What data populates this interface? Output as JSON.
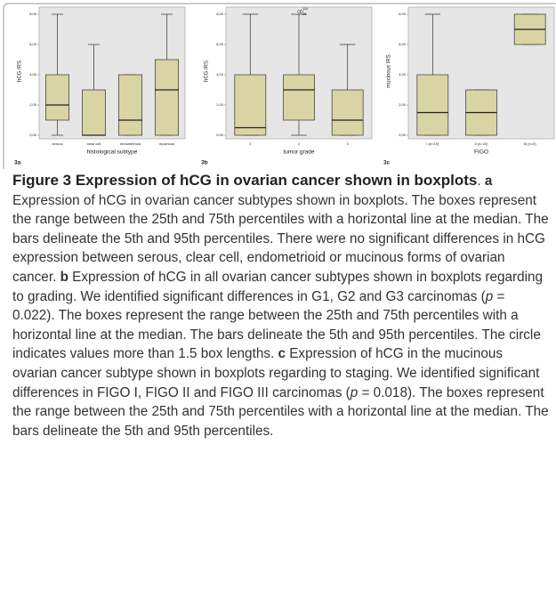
{
  "chart_data": [
    {
      "type": "box",
      "panel_label": "3a",
      "y_label": "hCG IRS",
      "x_label": "histological subtype",
      "categories": [
        "serous",
        "clear cell",
        "endometrioid",
        "mucinous"
      ],
      "boxes": [
        {
          "whislo": 0,
          "q1": 1,
          "med": 2,
          "q3": 4,
          "whishi": 8
        },
        {
          "whislo": 0,
          "q1": 0,
          "med": 0,
          "q3": 3,
          "whishi": 6
        },
        {
          "whislo": 0,
          "q1": 0,
          "med": 1,
          "q3": 4,
          "whishi": 4
        },
        {
          "whislo": 0,
          "q1": 0,
          "med": 3,
          "q3": 5,
          "whishi": 8
        }
      ],
      "color": "#d9d4a3",
      "ylim": [
        0,
        8
      ],
      "yticks": [
        {
          "value": 0,
          "label": "0,00"
        },
        {
          "value": 2,
          "label": "2,00"
        },
        {
          "value": 4,
          "label": "4,00"
        },
        {
          "value": 6,
          "label": "6,00"
        },
        {
          "value": 8,
          "label": "8,00"
        }
      ]
    },
    {
      "type": "box",
      "panel_label": "3b",
      "y_label": "hCG IRS",
      "x_label": "tumor grade",
      "categories": [
        "1",
        "2",
        "3"
      ],
      "boxes": [
        {
          "whislo": 0,
          "q1": 0,
          "med": 0.5,
          "q3": 4,
          "whishi": 8
        },
        {
          "whislo": 0,
          "q1": 1,
          "med": 3,
          "q3": 4,
          "whishi": 8,
          "outliers": [
            8,
            8
          ],
          "outlier_labels": [
            "110",
            "16"
          ]
        },
        {
          "whislo": 0,
          "q1": 0,
          "med": 1,
          "q3": 3,
          "whishi": 6
        }
      ],
      "color": "#d9d4a3",
      "ylim": [
        0,
        8
      ],
      "yticks": [
        {
          "value": 0,
          "label": "0,00"
        },
        {
          "value": 2,
          "label": "2,00"
        },
        {
          "value": 4,
          "label": "4,00"
        },
        {
          "value": 6,
          "label": "6,00"
        },
        {
          "value": 8,
          "label": "8,00"
        }
      ]
    },
    {
      "type": "box",
      "panel_label": "3c",
      "y_label": "mucinous IRS",
      "x_label": "FIGO",
      "categories": [
        "I (n=19)",
        "II (n=10)",
        "III (n=3)"
      ],
      "boxes": [
        {
          "whislo": 0,
          "q1": 0,
          "med": 1.5,
          "q3": 4,
          "whishi": 8
        },
        {
          "whislo": 0,
          "q1": 0,
          "med": 1.5,
          "q3": 3,
          "whishi": 3
        },
        {
          "whislo": 6,
          "q1": 6,
          "med": 7,
          "q3": 8,
          "whishi": 8
        }
      ],
      "color": "#d9d4a3",
      "ylim": [
        0,
        8
      ],
      "yticks": [
        {
          "value": 0,
          "label": "0,00"
        },
        {
          "value": 2,
          "label": "2,00"
        },
        {
          "value": 4,
          "label": "4,00"
        },
        {
          "value": 6,
          "label": "6,00"
        },
        {
          "value": 8,
          "label": "8,00"
        }
      ]
    }
  ],
  "caption": {
    "segments": [
      {
        "text": "Figure 3 Expression of hCG in ovarian cancer shown in boxplots",
        "style": "title"
      },
      {
        "text": ". ",
        "style": "normal"
      },
      {
        "text": "a",
        "style": "bold"
      },
      {
        "text": " Expression of hCG in ovarian cancer subtypes shown in boxplots. The boxes represent the range between the 25th and 75th percentiles with a horizontal line at the median. The bars delineate the 5th and 95th percentiles. There were no significant differences in hCG expression between serous, clear cell, endometrioid or mucinous forms of ovarian cancer. ",
        "style": "normal"
      },
      {
        "text": "b",
        "style": "bold"
      },
      {
        "text": " Expression of hCG in all ovarian cancer subtypes shown in boxplots regarding to grading. We identified significant differences in G1, G2 and G3 carcinomas (",
        "style": "normal"
      },
      {
        "text": "p",
        "style": "italic"
      },
      {
        "text": " = 0.022). The boxes represent the range between the 25th and 75th percentiles with a horizontal line at the median. The bars delineate the 5th and 95th percentiles. The circle indicates values more than 1.5 box lengths. ",
        "style": "normal"
      },
      {
        "text": "c",
        "style": "bold"
      },
      {
        "text": " Expression of hCG in the mucinous ovarian cancer subtype shown in boxplots regarding to staging. We identified significant differences in FIGO I, FIGO II and FIGO III carcinomas (",
        "style": "normal"
      },
      {
        "text": "p",
        "style": "italic"
      },
      {
        "text": " = 0.018). The boxes represent the range between the 25th and 75th percentiles with a horizontal line at the median. The bars delineate the 5th and 95th percentiles.",
        "style": "normal"
      }
    ]
  }
}
